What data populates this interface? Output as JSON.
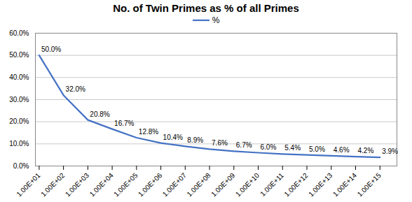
{
  "chart_data": {
    "type": "line",
    "title": "No. of Twin Primes as % of all Primes",
    "x": [
      10,
      100,
      1000,
      10000,
      100000,
      1000000,
      10000000,
      100000000,
      1000000000,
      10000000000,
      100000000000,
      1000000000000,
      10000000000000,
      100000000000000,
      1000000000000000
    ],
    "series": [
      {
        "name": "%",
        "color": "#4472C4",
        "values": [
          0.5,
          0.32,
          0.208,
          0.167,
          0.128,
          0.104,
          0.089,
          0.076,
          0.067,
          0.06,
          0.054,
          0.05,
          0.046,
          0.042,
          0.039
        ],
        "value_labels": [
          "50.0%",
          "32.0%",
          "20.8%",
          "16.7%",
          "12.8%",
          "10.4%",
          "8.9%",
          "7.6%",
          "6.7%",
          "6.0%",
          "5.4%",
          "5.0%",
          "4.6%",
          "4.2%",
          "3.9%"
        ]
      }
    ],
    "log": "x",
    "xlim": [
      7,
      5000000000000000
    ],
    "xticks": [
      {
        "value": 10,
        "label": "1.00E+01"
      },
      {
        "value": 100,
        "label": "1.00E+02"
      },
      {
        "value": 1000,
        "label": "1.00E+03"
      },
      {
        "value": 10000,
        "label": "1.00E+04"
      },
      {
        "value": 100000,
        "label": "1.00E+05"
      },
      {
        "value": 1000000,
        "label": "1.00E+06"
      },
      {
        "value": 10000000,
        "label": "1.00E+07"
      },
      {
        "value": 100000000,
        "label": "1.00E+08"
      },
      {
        "value": 1000000000,
        "label": "1.00E+09"
      },
      {
        "value": 10000000000,
        "label": "1.00E+10"
      },
      {
        "value": 100000000000,
        "label": "1.00E+11"
      },
      {
        "value": 1000000000000,
        "label": "1.00E+12"
      },
      {
        "value": 10000000000000,
        "label": "1.00E+13"
      },
      {
        "value": 100000000000000,
        "label": "1.00E+14"
      },
      {
        "value": 1000000000000000,
        "label": "1.00E+15"
      }
    ],
    "ylim": [
      0.0,
      0.6
    ],
    "yticks": [
      {
        "value": 0.0,
        "label": "0.0%"
      },
      {
        "value": 0.1,
        "label": "10.0%"
      },
      {
        "value": 0.2,
        "label": "20.0%"
      },
      {
        "value": 0.3,
        "label": "30.0%"
      },
      {
        "value": 0.4,
        "label": "40.0%"
      },
      {
        "value": 0.5,
        "label": "50.0%"
      },
      {
        "value": 0.6,
        "label": "60.0%"
      }
    ],
    "grid": "y",
    "legend": "top",
    "data_labels": true
  }
}
